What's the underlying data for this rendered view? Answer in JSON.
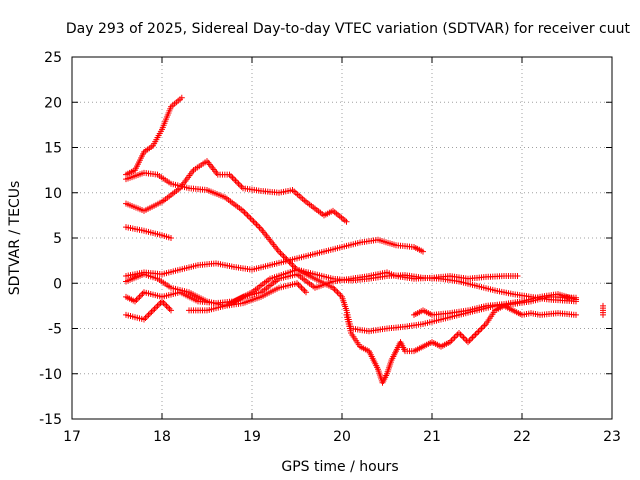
{
  "chart_data": {
    "type": "scatter",
    "title": "Day 293 of 2025, Sidereal Day-to-day VTEC variation (SDTVAR) for receiver cuut",
    "xlabel": "GPS time / hours",
    "ylabel": "SDTVAR / TECUs",
    "xlim": [
      17,
      23
    ],
    "ylim": [
      -15,
      25
    ],
    "xticks": [
      "17",
      "18",
      "19",
      "20",
      "21",
      "22",
      "23"
    ],
    "yticks": [
      "-15",
      "-10",
      "-5",
      "0",
      "5",
      "10",
      "15",
      "20",
      "25"
    ],
    "grid": true,
    "marker": "+",
    "color": "#ff0000",
    "series": [
      {
        "name": "trace-1",
        "points": [
          [
            17.6,
            12.0
          ],
          [
            17.7,
            12.5
          ],
          [
            17.8,
            14.5
          ],
          [
            17.9,
            15.2
          ],
          [
            18.0,
            17.0
          ],
          [
            18.1,
            19.5
          ],
          [
            18.22,
            20.5
          ]
        ]
      },
      {
        "name": "trace-2",
        "points": [
          [
            17.6,
            11.5
          ],
          [
            17.8,
            12.2
          ],
          [
            17.95,
            12.0
          ],
          [
            18.1,
            11.0
          ],
          [
            18.3,
            10.5
          ],
          [
            18.5,
            10.3
          ],
          [
            18.7,
            9.5
          ],
          [
            18.9,
            8.0
          ],
          [
            19.1,
            6.0
          ],
          [
            19.3,
            3.5
          ],
          [
            19.5,
            1.5
          ],
          [
            19.7,
            0.5
          ],
          [
            19.9,
            -0.5
          ],
          [
            20.0,
            -1.5
          ],
          [
            20.05,
            -3.0
          ],
          [
            20.1,
            -5.0
          ],
          [
            20.3,
            -5.3
          ],
          [
            20.5,
            -5.0
          ],
          [
            20.7,
            -4.8
          ],
          [
            20.9,
            -4.5
          ],
          [
            21.1,
            -4.0
          ],
          [
            21.3,
            -3.5
          ],
          [
            21.5,
            -3.0
          ],
          [
            21.7,
            -2.5
          ],
          [
            21.9,
            -2.3
          ],
          [
            22.1,
            -2.0
          ],
          [
            22.3,
            -1.5
          ],
          [
            22.6,
            -1.6
          ]
        ]
      },
      {
        "name": "trace-3",
        "points": [
          [
            17.6,
            8.8
          ],
          [
            17.8,
            8.0
          ],
          [
            18.0,
            9.0
          ],
          [
            18.2,
            10.5
          ],
          [
            18.35,
            12.5
          ],
          [
            18.5,
            13.5
          ],
          [
            18.62,
            12.0
          ],
          [
            18.75,
            12.0
          ],
          [
            18.9,
            10.5
          ],
          [
            19.1,
            10.2
          ],
          [
            19.3,
            10.0
          ],
          [
            19.45,
            10.3
          ],
          [
            19.6,
            9.0
          ],
          [
            19.8,
            7.5
          ],
          [
            19.9,
            8.0
          ],
          [
            20.05,
            6.8
          ]
        ]
      },
      {
        "name": "trace-4",
        "points": [
          [
            17.6,
            6.2
          ],
          [
            17.8,
            5.8
          ],
          [
            18.0,
            5.3
          ],
          [
            18.1,
            5.0
          ]
        ]
      },
      {
        "name": "trace-5",
        "points": [
          [
            17.6,
            0.8
          ],
          [
            17.8,
            1.2
          ],
          [
            18.0,
            1.0
          ],
          [
            18.2,
            1.5
          ],
          [
            18.4,
            2.0
          ],
          [
            18.6,
            2.2
          ],
          [
            18.8,
            1.8
          ],
          [
            19.0,
            1.5
          ],
          [
            19.2,
            2.0
          ],
          [
            19.4,
            2.5
          ],
          [
            19.6,
            3.0
          ],
          [
            19.8,
            3.5
          ],
          [
            20.0,
            4.0
          ],
          [
            20.2,
            4.5
          ],
          [
            20.4,
            4.8
          ],
          [
            20.6,
            4.2
          ],
          [
            20.8,
            4.0
          ],
          [
            20.9,
            3.5
          ]
        ]
      },
      {
        "name": "trace-6",
        "points": [
          [
            17.6,
            0.2
          ],
          [
            17.8,
            1.0
          ],
          [
            17.95,
            0.5
          ],
          [
            18.1,
            -0.5
          ],
          [
            18.3,
            -1.0
          ],
          [
            18.5,
            -2.0
          ],
          [
            18.7,
            -2.5
          ],
          [
            18.9,
            -1.5
          ],
          [
            19.1,
            -1.0
          ],
          [
            19.3,
            0.5
          ],
          [
            19.5,
            1.0
          ],
          [
            19.7,
            -0.5
          ],
          [
            19.9,
            0.2
          ],
          [
            20.1,
            0.5
          ],
          [
            20.3,
            0.8
          ],
          [
            20.5,
            1.2
          ],
          [
            20.6,
            0.8
          ],
          [
            20.8,
            0.5
          ],
          [
            21.0,
            0.6
          ],
          [
            21.2,
            0.8
          ],
          [
            21.4,
            0.5
          ],
          [
            21.6,
            0.7
          ],
          [
            21.8,
            0.8
          ],
          [
            21.95,
            0.8
          ]
        ]
      },
      {
        "name": "trace-7",
        "points": [
          [
            17.6,
            -1.5
          ],
          [
            17.7,
            -2.0
          ],
          [
            17.8,
            -1.0
          ],
          [
            18.0,
            -1.5
          ],
          [
            18.2,
            -1.0
          ],
          [
            18.4,
            -2.0
          ],
          [
            18.6,
            -2.2
          ],
          [
            18.8,
            -2.0
          ],
          [
            19.0,
            -1.0
          ],
          [
            19.2,
            0.5
          ],
          [
            19.35,
            1.0
          ],
          [
            19.5,
            1.5
          ],
          [
            19.7,
            1.0
          ],
          [
            19.9,
            0.5
          ],
          [
            20.1,
            0.3
          ],
          [
            20.3,
            0.5
          ],
          [
            20.5,
            0.8
          ],
          [
            20.7,
            0.9
          ],
          [
            20.9,
            0.6
          ],
          [
            21.1,
            0.5
          ],
          [
            21.3,
            0.2
          ],
          [
            21.5,
            -0.3
          ],
          [
            21.7,
            -0.8
          ],
          [
            21.9,
            -1.2
          ],
          [
            22.1,
            -1.5
          ],
          [
            22.3,
            -1.8
          ],
          [
            22.6,
            -2.0
          ]
        ]
      },
      {
        "name": "trace-8",
        "points": [
          [
            17.6,
            -3.5
          ],
          [
            17.8,
            -4.0
          ],
          [
            17.9,
            -3.0
          ],
          [
            18.0,
            -2.0
          ],
          [
            18.1,
            -3.0
          ]
        ]
      },
      {
        "name": "trace-9",
        "points": [
          [
            18.3,
            -3.0
          ],
          [
            18.5,
            -3.0
          ],
          [
            18.7,
            -2.5
          ],
          [
            18.9,
            -2.2
          ],
          [
            19.1,
            -1.5
          ],
          [
            19.3,
            -0.5
          ],
          [
            19.5,
            0.0
          ],
          [
            19.6,
            -1.0
          ]
        ]
      },
      {
        "name": "trace-10",
        "points": [
          [
            20.05,
            -3.5
          ],
          [
            20.1,
            -5.5
          ],
          [
            20.2,
            -7.0
          ],
          [
            20.3,
            -7.5
          ],
          [
            20.35,
            -8.5
          ],
          [
            20.4,
            -9.5
          ],
          [
            20.45,
            -11.0
          ],
          [
            20.5,
            -10.0
          ],
          [
            20.55,
            -8.5
          ],
          [
            20.6,
            -7.5
          ],
          [
            20.65,
            -6.5
          ],
          [
            20.7,
            -7.5
          ],
          [
            20.8,
            -7.5
          ],
          [
            20.9,
            -7.0
          ],
          [
            21.0,
            -6.5
          ],
          [
            21.1,
            -7.0
          ],
          [
            21.2,
            -6.5
          ],
          [
            21.3,
            -5.5
          ],
          [
            21.4,
            -6.5
          ],
          [
            21.5,
            -5.5
          ],
          [
            21.6,
            -4.5
          ],
          [
            21.7,
            -3.0
          ],
          [
            21.8,
            -2.5
          ],
          [
            21.9,
            -3.0
          ],
          [
            22.0,
            -3.5
          ],
          [
            22.1,
            -3.3
          ],
          [
            22.2,
            -3.5
          ],
          [
            22.4,
            -3.3
          ],
          [
            22.6,
            -3.5
          ]
        ]
      },
      {
        "name": "trace-11",
        "points": [
          [
            20.8,
            -3.5
          ],
          [
            20.9,
            -3.0
          ],
          [
            21.0,
            -3.5
          ],
          [
            21.2,
            -3.3
          ],
          [
            21.4,
            -3.0
          ],
          [
            21.6,
            -2.5
          ],
          [
            21.8,
            -2.3
          ],
          [
            22.0,
            -2.0
          ],
          [
            22.2,
            -1.5
          ],
          [
            22.4,
            -1.2
          ],
          [
            22.6,
            -1.8
          ]
        ]
      },
      {
        "name": "trace-12",
        "points": [
          [
            22.9,
            -2.5
          ],
          [
            22.9,
            -3.5
          ]
        ]
      }
    ]
  }
}
